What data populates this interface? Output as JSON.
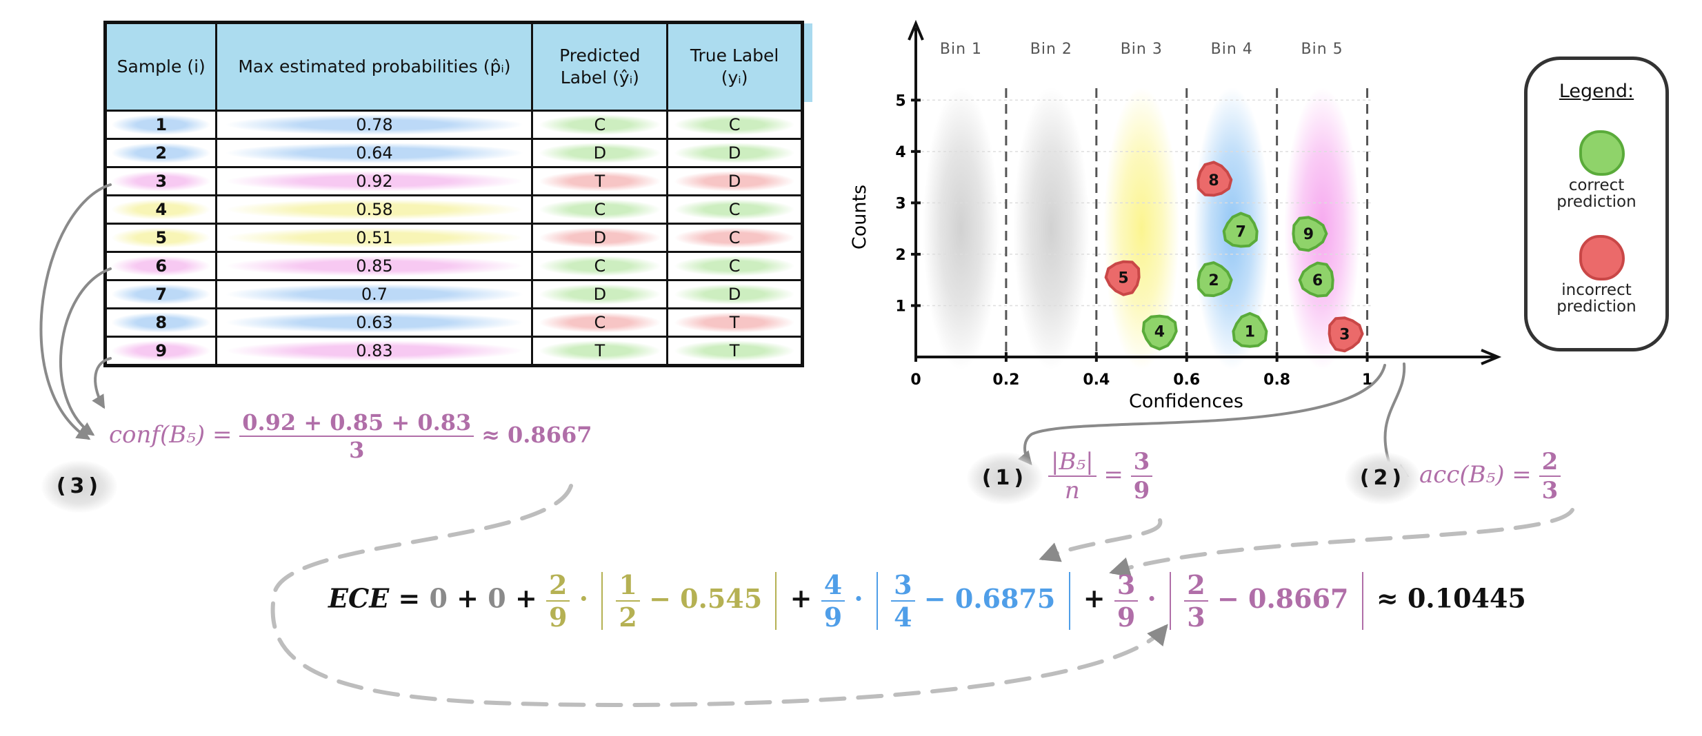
{
  "table": {
    "headers": {
      "sample": "Sample (i)",
      "prob": "Max estimated probabilities (p̂ᵢ)",
      "pred_line1": "Predicted",
      "pred_line2": "Label (ŷᵢ)",
      "true_line1": "True Label",
      "true_line2": "(yᵢ)"
    },
    "rows": [
      {
        "id": "1",
        "prob": "0.78",
        "pred": "C",
        "true": "C",
        "color": "#bcd9f7",
        "pred_color": "#cdeec0",
        "true_color": "#cdeec0"
      },
      {
        "id": "2",
        "prob": "0.64",
        "pred": "D",
        "true": "D",
        "color": "#bcd9f7",
        "pred_color": "#cdeec0",
        "true_color": "#cdeec0"
      },
      {
        "id": "3",
        "prob": "0.92",
        "pred": "T",
        "true": "D",
        "color": "#f7c9f2",
        "pred_color": "#f7c5c5",
        "true_color": "#f7c5c5"
      },
      {
        "id": "4",
        "prob": "0.58",
        "pred": "C",
        "true": "C",
        "color": "#f8f5b6",
        "pred_color": "#cdeec0",
        "true_color": "#cdeec0"
      },
      {
        "id": "5",
        "prob": "0.51",
        "pred": "D",
        "true": "C",
        "color": "#f8f5b6",
        "pred_color": "#f7c5c5",
        "true_color": "#f7c5c5"
      },
      {
        "id": "6",
        "prob": "0.85",
        "pred": "C",
        "true": "C",
        "color": "#f7c9f2",
        "pred_color": "#cdeec0",
        "true_color": "#cdeec0"
      },
      {
        "id": "7",
        "prob": "0.7",
        "pred": "D",
        "true": "D",
        "color": "#bcd9f7",
        "pred_color": "#cdeec0",
        "true_color": "#cdeec0"
      },
      {
        "id": "8",
        "prob": "0.63",
        "pred": "C",
        "true": "T",
        "color": "#bcd9f7",
        "pred_color": "#f7c5c5",
        "true_color": "#f7c5c5"
      },
      {
        "id": "9",
        "prob": "0.83",
        "pred": "T",
        "true": "T",
        "color": "#f7c9f2",
        "pred_color": "#cdeec0",
        "true_color": "#cdeec0"
      }
    ]
  },
  "chart_data": {
    "type": "scatter",
    "xlabel": "Confidences",
    "ylabel": "Counts",
    "xlim": [
      0,
      1.1
    ],
    "ylim": [
      0,
      5.5
    ],
    "x_ticks": [
      {
        "value": 0,
        "label": "0"
      },
      {
        "value": 0.2,
        "label": "0.2"
      },
      {
        "value": 0.4,
        "label": "0.4"
      },
      {
        "value": 0.6,
        "label": "0.6"
      },
      {
        "value": 0.8,
        "label": "0.8"
      },
      {
        "value": 1,
        "label": "1"
      }
    ],
    "y_ticks": [
      {
        "value": 1,
        "label": "1"
      },
      {
        "value": 2,
        "label": "2"
      },
      {
        "value": 3,
        "label": "3"
      },
      {
        "value": 4,
        "label": "4"
      },
      {
        "value": 5,
        "label": "5"
      }
    ],
    "grid": true,
    "bins": [
      {
        "label": "Bin 1",
        "range": [
          0,
          0.2
        ],
        "color": "#cfcfcf"
      },
      {
        "label": "Bin 2",
        "range": [
          0.2,
          0.4
        ],
        "color": "#cfcfcf"
      },
      {
        "label": "Bin 3",
        "range": [
          0.4,
          0.6
        ],
        "color": "#fbf48a"
      },
      {
        "label": "Bin 4",
        "range": [
          0.6,
          0.8
        ],
        "color": "#8ec4f5"
      },
      {
        "label": "Bin 5",
        "range": [
          0.8,
          1.0
        ],
        "color": "#f6a3ee"
      }
    ],
    "points": [
      {
        "label": "1",
        "x": 0.74,
        "y": 0.5,
        "correct": true
      },
      {
        "label": "2",
        "x": 0.66,
        "y": 1.5,
        "correct": true
      },
      {
        "label": "3",
        "x": 0.95,
        "y": 0.45,
        "correct": false
      },
      {
        "label": "4",
        "x": 0.54,
        "y": 0.5,
        "correct": true
      },
      {
        "label": "5",
        "x": 0.46,
        "y": 1.55,
        "correct": false
      },
      {
        "label": "6",
        "x": 0.89,
        "y": 1.5,
        "correct": true
      },
      {
        "label": "7",
        "x": 0.72,
        "y": 2.45,
        "correct": true
      },
      {
        "label": "8",
        "x": 0.66,
        "y": 3.45,
        "correct": false
      },
      {
        "label": "9",
        "x": 0.87,
        "y": 2.4,
        "correct": true
      }
    ],
    "colors": {
      "correct": "#8fd36a",
      "incorrect": "#eb6a6a",
      "correct_edge": "#5aab3a",
      "incorrect_edge": "#c94747"
    }
  },
  "legend": {
    "title": "Legend:",
    "correct": "correct prediction",
    "incorrect": "incorrect prediction"
  },
  "steps": {
    "step1": "(1)",
    "step2": "(2)",
    "step3": "(3)"
  },
  "formulas": {
    "conf_lhs": "conf(B₅) =",
    "conf_num": "0.92 + 0.85 + 0.83",
    "conf_den": "3",
    "conf_approx": "≈ 0.8667",
    "frac_lhs_num": "|B₅|",
    "frac_lhs_den": "n",
    "frac_eq": "=",
    "frac_num": "3",
    "frac_den": "9",
    "acc_lhs": "acc(B₅) =",
    "acc_num": "2",
    "acc_den": "3",
    "ece_lhs": "ECE",
    "ece_eq": "=",
    "ece_zero1": "0",
    "ece_plus": "+",
    "ece_zero2": "0",
    "ece_t3_w_num": "2",
    "ece_t3_w_den": "9",
    "ece_t3_acc_num": "1",
    "ece_t3_acc_den": "2",
    "ece_t3_conf": "0.545",
    "ece_t4_w_num": "4",
    "ece_t4_w_den": "9",
    "ece_t4_acc_num": "3",
    "ece_t4_acc_den": "4",
    "ece_t4_conf": "0.6875",
    "ece_t5_w_num": "3",
    "ece_t5_w_den": "9",
    "ece_t5_acc_num": "2",
    "ece_t5_acc_den": "3",
    "ece_t5_conf": "0.8667",
    "ece_dot": "·",
    "ece_minus": "−",
    "ece_result": "≈ 0.10445"
  }
}
